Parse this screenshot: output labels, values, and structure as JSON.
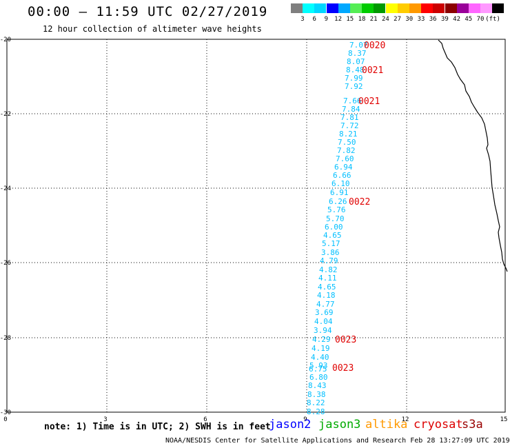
{
  "header": {
    "title": "00:00 – 11:59 UTC 02/27/2019",
    "subtitle": "12 hour collection of altimeter wave heights"
  },
  "color_scale": {
    "boxes": [
      "#7f7f7f",
      "#00ffff",
      "#00d6ff",
      "#0000ff",
      "#00a8ff",
      "#55ee55",
      "#00cc00",
      "#009900",
      "#ffff00",
      "#ffcc00",
      "#ff9900",
      "#ff0000",
      "#cc0000",
      "#8b0000",
      "#990099",
      "#ff66ff",
      "#ff99ff",
      "#000000"
    ],
    "labels": [
      "3",
      "6",
      "9",
      "12",
      "15",
      "18",
      "21",
      "24",
      "27",
      "30",
      "33",
      "36",
      "39",
      "42",
      "45",
      "70",
      "(ft)"
    ]
  },
  "map": {
    "y_ticks": [
      "-20",
      "-22",
      "-24",
      "-26",
      "-28",
      "-30"
    ],
    "x_ticks": [
      "0",
      "3",
      "6",
      "9",
      "12",
      "15"
    ]
  },
  "track_values": [
    "7.07",
    "8.37",
    "8.07",
    "8.48",
    "7.99",
    "7.92",
    "7.66",
    "7.84",
    "7.81",
    "7.72",
    "8.21",
    "7.50",
    "7.82",
    "7.60",
    "6.94",
    "6.66",
    "6.10",
    "6.91",
    "6.26",
    "5.76",
    "5.70",
    "6.00",
    "4.65",
    "5.17",
    "3.86",
    "4.79",
    "4.82",
    "4.11",
    "4.65",
    "4.18",
    "4.77",
    "3.69",
    "4.04",
    "3.94",
    "4.29",
    "4.19",
    "4.40",
    "5.93",
    "6.75",
    "6.80",
    "8.43",
    "8.38",
    "8.22",
    "8.28"
  ],
  "time_labels": [
    "0020",
    "0021",
    "0021",
    "0022",
    "0023",
    "0023"
  ],
  "colors": {
    "track": "#00bfff",
    "time": "#e00000",
    "land": "#000000",
    "grid": "#000000"
  },
  "note": "note: 1) Time is in UTC; 2) SWH is in feet",
  "satellites": [
    {
      "name": "jason2",
      "color": "#0000ff"
    },
    {
      "name": "jason3",
      "color": "#00aa00"
    },
    {
      "name": "altika",
      "color": "#ff9900"
    },
    {
      "name": "cryosat",
      "color": "#dd0000"
    },
    {
      "name": "s3a",
      "color": "#990000"
    }
  ],
  "footer": "NOAA/NESDIS Center for Satellite Applications and Research    Feb 28 13:27:09 UTC 2019"
}
